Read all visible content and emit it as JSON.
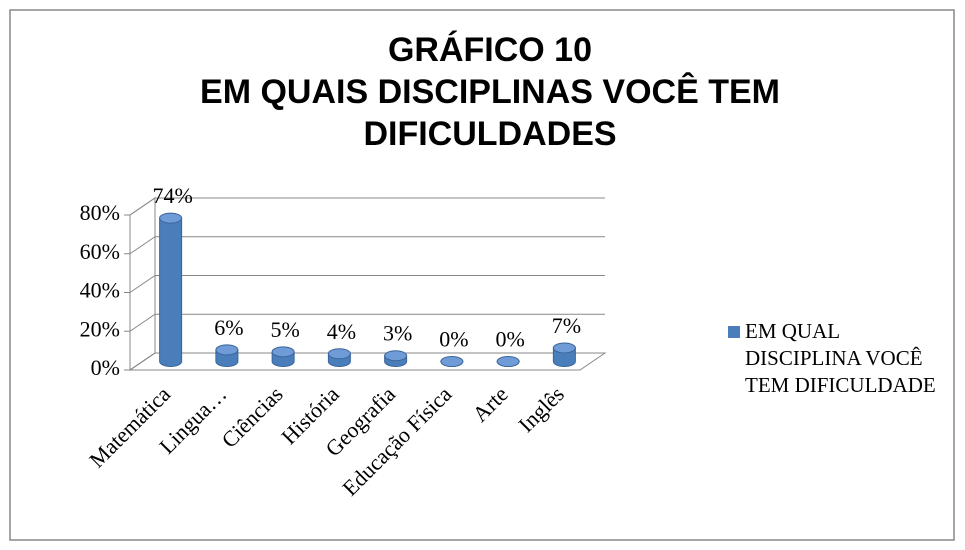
{
  "chart_data": {
    "type": "bar3d",
    "title": [
      "GRÁFICO 10",
      "EM QUAIS DISCIPLINAS VOCÊ TEM",
      "DIFICULDADES"
    ],
    "categories": [
      "Matemática",
      "Lingua…",
      "Ciências",
      "História",
      "Geografia",
      "Educação Física",
      "Arte",
      "Inglês"
    ],
    "series": [
      {
        "name": "EM QUAL DISCIPLINA VOCÊ TEM DIFICULDADE",
        "color": "#4a7ebb",
        "values": [
          74,
          6,
          5,
          4,
          3,
          0,
          0,
          7
        ],
        "value_labels": [
          "74%",
          "6%",
          "5%",
          "4%",
          "3%",
          "0%",
          "0%",
          "7%"
        ]
      }
    ],
    "ylim": [
      0,
      80
    ],
    "yticks": [
      {
        "value": 0,
        "label": "0%"
      },
      {
        "value": 20,
        "label": "20%"
      },
      {
        "value": 40,
        "label": "40%"
      },
      {
        "value": 60,
        "label": "60%"
      },
      {
        "value": 80,
        "label": "80%"
      }
    ],
    "grid": true,
    "legend": "right"
  }
}
